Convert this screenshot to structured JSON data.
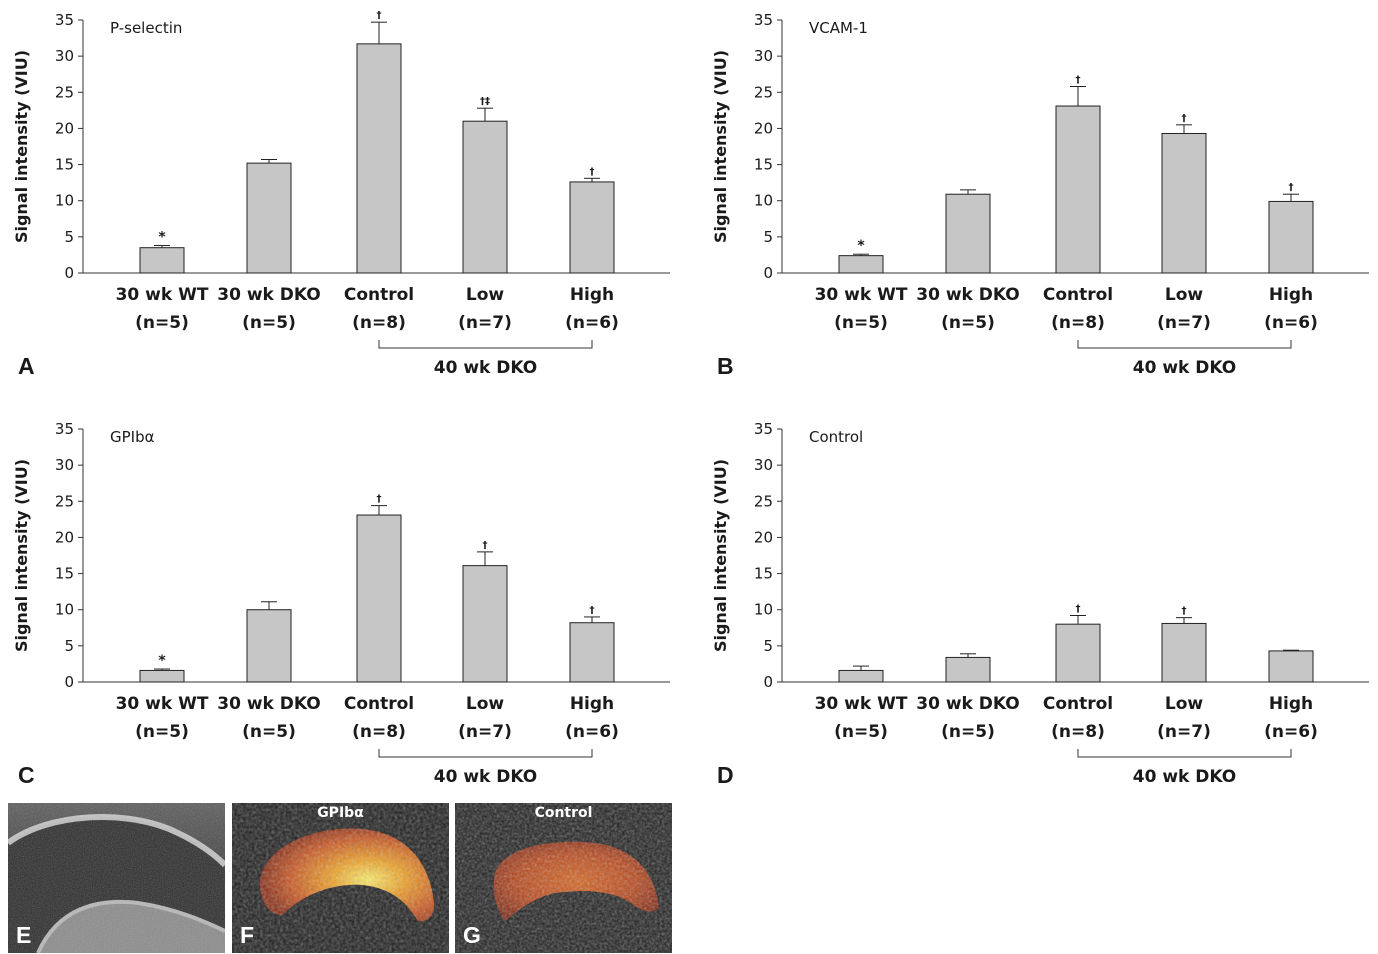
{
  "chart_data": [
    {
      "type": "bar",
      "panel_letter": "A",
      "title": "P-selectin",
      "ylabel": "Signal intensity (VIU)",
      "ylim": [
        0,
        35
      ],
      "yticks": [
        "0",
        "5",
        "10",
        "15",
        "20",
        "25",
        "30",
        "35"
      ],
      "categories": [
        {
          "line1": "30 wk WT",
          "line2": "(n=5)"
        },
        {
          "line1": "30 wk DKO",
          "line2": "(n=5)"
        },
        {
          "line1": "Control",
          "line2": "(n=8)"
        },
        {
          "line1": "Low",
          "line2": "(n=7)"
        },
        {
          "line1": "High",
          "line2": "(n=6)"
        }
      ],
      "values": [
        3.5,
        15.2,
        31.7,
        21.0,
        12.6
      ],
      "errors": [
        0.3,
        0.5,
        3.0,
        1.8,
        0.5
      ],
      "annotations": [
        "*",
        "",
        "†",
        "†‡",
        "†"
      ],
      "group_label": "40 wk DKO",
      "bar_color": "#c6c6c6"
    },
    {
      "type": "bar",
      "panel_letter": "B",
      "title": "VCAM-1",
      "ylabel": "Signal intensity (VIU)",
      "ylim": [
        0,
        35
      ],
      "yticks": [
        "0",
        "5",
        "10",
        "15",
        "20",
        "25",
        "30",
        "35"
      ],
      "categories": [
        {
          "line1": "30 wk WT",
          "line2": "(n=5)"
        },
        {
          "line1": "30 wk DKO",
          "line2": "(n=5)"
        },
        {
          "line1": "Control",
          "line2": "(n=8)"
        },
        {
          "line1": "Low",
          "line2": "(n=7)"
        },
        {
          "line1": "High",
          "line2": "(n=6)"
        }
      ],
      "values": [
        2.4,
        10.9,
        23.1,
        19.3,
        9.9
      ],
      "errors": [
        0.2,
        0.6,
        2.7,
        1.2,
        1.0
      ],
      "annotations": [
        "*",
        "",
        "†",
        "†",
        "†"
      ],
      "group_label": "40 wk DKO",
      "bar_color": "#c6c6c6"
    },
    {
      "type": "bar",
      "panel_letter": "C",
      "title": "GPIbα",
      "ylabel": "Signal intensity (VIU)",
      "ylim": [
        0,
        35
      ],
      "yticks": [
        "0",
        "5",
        "10",
        "15",
        "20",
        "25",
        "30",
        "35"
      ],
      "categories": [
        {
          "line1": "30 wk WT",
          "line2": "(n=5)"
        },
        {
          "line1": "30 wk DKO",
          "line2": "(n=5)"
        },
        {
          "line1": "Control",
          "line2": "(n=8)"
        },
        {
          "line1": "Low",
          "line2": "(n=7)"
        },
        {
          "line1": "High",
          "line2": "(n=6)"
        }
      ],
      "values": [
        1.6,
        10.0,
        23.1,
        16.1,
        8.2
      ],
      "errors": [
        0.2,
        1.1,
        1.3,
        1.9,
        0.8
      ],
      "annotations": [
        "*",
        "",
        "†",
        "†",
        "†"
      ],
      "group_label": "40 wk DKO",
      "bar_color": "#c6c6c6"
    },
    {
      "type": "bar",
      "panel_letter": "D",
      "title": "Control",
      "ylabel": "Signal intensity (VIU)",
      "ylim": [
        0,
        35
      ],
      "yticks": [
        "0",
        "5",
        "10",
        "15",
        "20",
        "25",
        "30",
        "35"
      ],
      "categories": [
        {
          "line1": "30 wk WT",
          "line2": "(n=5)"
        },
        {
          "line1": "30 wk DKO",
          "line2": "(n=5)"
        },
        {
          "line1": "Control",
          "line2": "(n=8)"
        },
        {
          "line1": "Low",
          "line2": "(n=7)"
        },
        {
          "line1": "High",
          "line2": "(n=6)"
        }
      ],
      "values": [
        1.6,
        3.4,
        8.0,
        8.1,
        4.3
      ],
      "errors": [
        0.6,
        0.5,
        1.2,
        0.8,
        0.1
      ],
      "annotations": [
        "",
        "",
        "†",
        "†",
        ""
      ],
      "group_label": "40 wk DKO",
      "bar_color": "#c6c6c6"
    }
  ],
  "images": [
    {
      "letter": "E",
      "title": "",
      "kind": "ultrasound"
    },
    {
      "letter": "F",
      "title": "GPIbα",
      "kind": "contrast-bright"
    },
    {
      "letter": "G",
      "title": "Control",
      "kind": "contrast-dim"
    }
  ]
}
